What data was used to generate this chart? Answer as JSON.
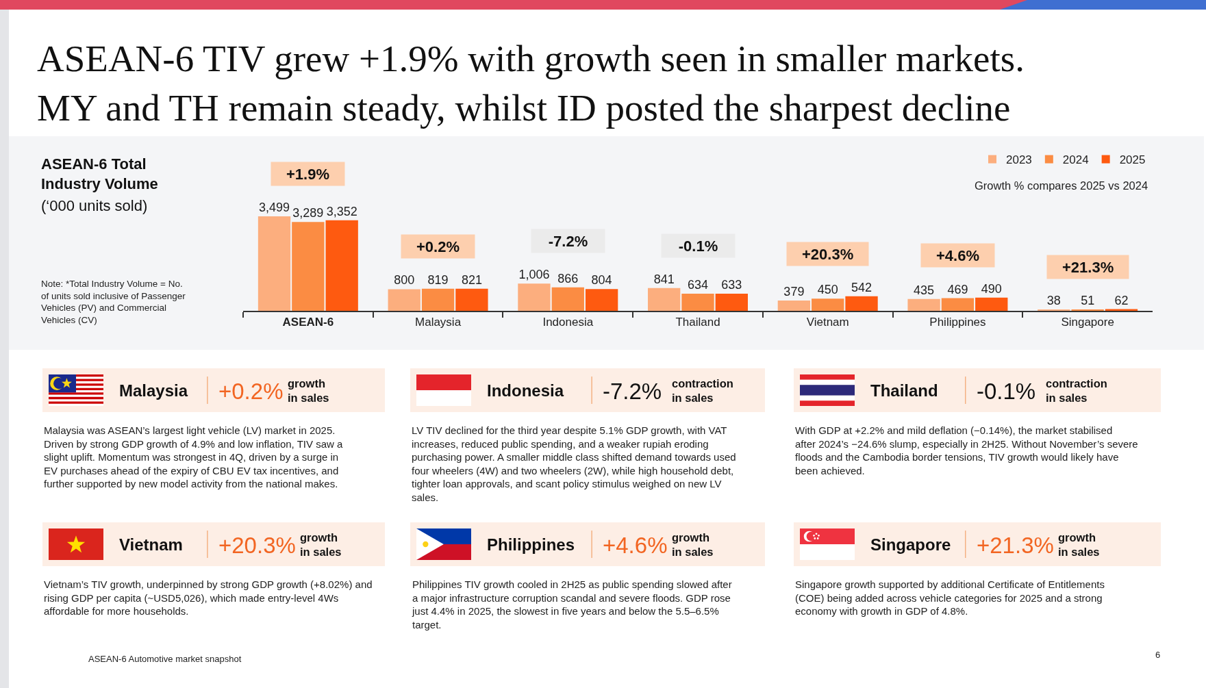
{
  "chart_data": {
    "type": "bar",
    "title": "ASEAN-6 TIV grew +1.9% with growth seen in smaller markets.\nMY and TH remain steady, whilst ID posted the sharpest decline",
    "subtitle": "ASEAN-6 Total Industry Volume",
    "categories": [
      "ASEAN-6",
      "Malaysia",
      "Indonesia",
      "Thailand",
      "Vietnam",
      "Philippines",
      "Singapore"
    ],
    "series": [
      {
        "name": "2023",
        "color": "#fcae7e",
        "values": [
          3499,
          800,
          1006,
          841,
          379,
          435,
          38
        ],
        "value_labels": [
          "3,499",
          "800",
          "1,006",
          "841",
          "379",
          "435",
          "38"
        ]
      },
      {
        "name": "2024",
        "color": "#fb8c43",
        "values": [
          3289,
          819,
          866,
          634,
          450,
          469,
          51
        ],
        "value_labels": [
          "3,289",
          "819",
          "866",
          "634",
          "450",
          "469",
          "51"
        ]
      },
      {
        "name": "2025",
        "color": "#fe5a10",
        "values": [
          3352,
          821,
          804,
          633,
          542,
          490,
          62
        ],
        "value_labels": [
          "3,352",
          "821",
          "804",
          "633",
          "542",
          "490",
          "62"
        ]
      }
    ],
    "legend": "top right",
    "tick_labels": "x",
    "annotations": [
      "(‘000 units sold)",
      "Note: *Total Industry Volume = No. of units sold inclusive of Passenger Vehicles (PV) and Commercial Vehicles (CV)",
      "Growth % compares 2025 vs 2024",
      "+1.9%",
      "+0.2%",
      "-7.2%",
      "-0.1%",
      "+20.3%",
      "+4.6%",
      "+21.3%",
      "Malaysia",
      "+0.2%",
      "growth\nin sales",
      "Malaysia was ASEAN’s largest light vehicle (LV) market in 2025. Driven by strong GDP growth of 4.9% and low inflation, TIV saw a slight uplift. Momentum was strongest in 4Q, driven by a surge in EV purchases ahead of the expiry of CBU EV tax incentives, and further supported by new model activity from the national makes.",
      "Indonesia",
      "-7.2%",
      "contraction\nin sales",
      "LV TIV declined for the third year despite 5.1% GDP growth, with VAT increases, reduced public spending, and a weaker rupiah eroding purchasing power. A smaller middle class shifted demand towards used four wheelers (4W) and two wheelers (2W), while high household debt, tighter loan approvals, and scant policy stimulus weighed on new LV sales.",
      "Thailand",
      "-0.1%",
      "contraction\nin sales",
      "With GDP at +2.2% and mild deflation (−0.14%), the market stabilised after 2024’s −24.6% slump, especially in 2H25. Without November’s severe floods and the Cambodia border tensions, TIV growth would likely have been achieved.",
      "Vietnam",
      "+20.3%",
      "growth\nin sales",
      "Vietnam’s TIV growth, underpinned by strong GDP growth (+8.02%) and rising GDP per capita (~USD5,026), which made entry-level 4Ws affordable for more households.",
      "Philippines",
      "+4.6%",
      "growth\nin sales",
      "Philippines TIV growth cooled in 2H25 as public spending slowed after a major infrastructure corruption scandal and severe floods. GDP rose just 4.4% in 2025, the slowest in five years and below the 5.5–6.5% target.",
      "Singapore",
      "+21.3%",
      "growth\nin sales",
      "Singapore growth supported by additional Certificate of Entitlements (COE) being added across vehicle categories for 2025 and a strong economy with growth in GDP of 4.8%.",
      "ASEAN-6 Automotive market snapshot",
      "6"
    ]
  }
}
